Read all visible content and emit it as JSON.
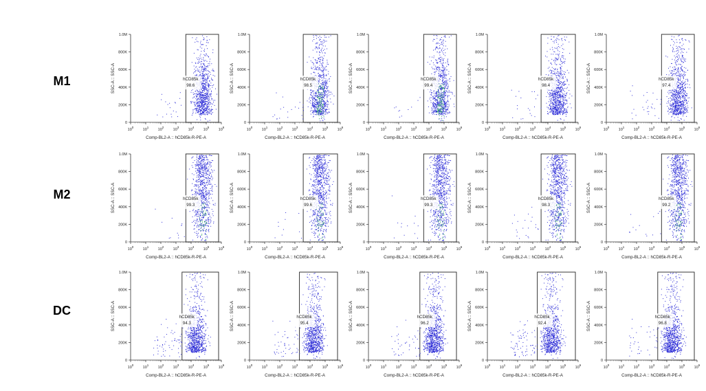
{
  "rows": [
    {
      "label": "M1"
    },
    {
      "label": "M2"
    },
    {
      "label": "DC"
    }
  ],
  "colors": {
    "sparse": "#2b2bd6",
    "dense": "#1a9a5a",
    "gate": "#222222"
  },
  "chart_data": {
    "type": "scatter",
    "plot_style": "flow cytometry dot plot with gate",
    "xlabel": "Comp-BL2-A :: hCD85k-R-PE-A",
    "ylabel": "SSC-A :: SSC-A",
    "x_scale": "log",
    "x_ticks": [
      "10^0",
      "10^1",
      "10^2",
      "10^3",
      "10^4",
      "10^5",
      "10^6"
    ],
    "y_ticks": [
      "0",
      "200K",
      "400K",
      "600K",
      "800K",
      "1.0M"
    ],
    "ylim": [
      0,
      1000000
    ],
    "gate_name": "hCD85k",
    "panels": [
      {
        "row": "M1",
        "col": 1,
        "gate_percent": "98.6"
      },
      {
        "row": "M1",
        "col": 2,
        "gate_percent": "98.5"
      },
      {
        "row": "M1",
        "col": 3,
        "gate_percent": "99.4"
      },
      {
        "row": "M1",
        "col": 4,
        "gate_percent": "98.4"
      },
      {
        "row": "M1",
        "col": 5,
        "gate_percent": "97.4"
      },
      {
        "row": "M2",
        "col": 1,
        "gate_percent": "99.3"
      },
      {
        "row": "M2",
        "col": 2,
        "gate_percent": "99.6"
      },
      {
        "row": "M2",
        "col": 3,
        "gate_percent": "99.3"
      },
      {
        "row": "M2",
        "col": 4,
        "gate_percent": "98.3"
      },
      {
        "row": "M2",
        "col": 5,
        "gate_percent": "99.2"
      },
      {
        "row": "DC",
        "col": 1,
        "gate_percent": "94.3"
      },
      {
        "row": "DC",
        "col": 2,
        "gate_percent": "95.4"
      },
      {
        "row": "DC",
        "col": 3,
        "gate_percent": "96.2"
      },
      {
        "row": "DC",
        "col": 4,
        "gate_percent": "92.4"
      },
      {
        "row": "DC",
        "col": 5,
        "gate_percent": "96.8"
      }
    ]
  }
}
